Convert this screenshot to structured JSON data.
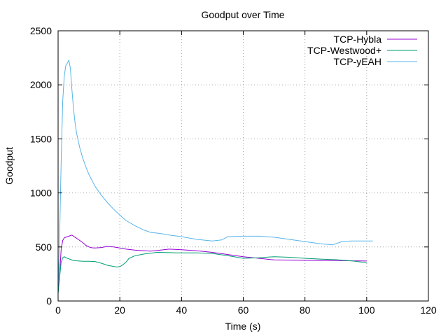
{
  "chart_data": {
    "type": "line",
    "title": "Goodput over Time",
    "xlabel": "Time (s)",
    "ylabel": "Goodput",
    "xlim": [
      0,
      120
    ],
    "ylim": [
      0,
      2500
    ],
    "xticks": [
      0,
      20,
      40,
      60,
      80,
      100,
      120
    ],
    "yticks": [
      0,
      500,
      1000,
      1500,
      2000,
      2500
    ],
    "grid": true,
    "legend_position": "top-right",
    "series": [
      {
        "name": "TCP-Hybla",
        "color": "#9400d3",
        "x": [
          0,
          0.5,
          1,
          1.5,
          2,
          2.5,
          3,
          3.5,
          4,
          4.5,
          5,
          6,
          7,
          8,
          9,
          10,
          11,
          12,
          14,
          16,
          18,
          20,
          22,
          25,
          28,
          30,
          33,
          36,
          40,
          45,
          50,
          55,
          60,
          65,
          70,
          75,
          80,
          85,
          90,
          95,
          100
        ],
        "y": [
          80,
          250,
          480,
          560,
          585,
          590,
          595,
          600,
          605,
          610,
          600,
          580,
          560,
          540,
          515,
          500,
          492,
          490,
          495,
          505,
          500,
          490,
          480,
          470,
          465,
          462,
          470,
          480,
          475,
          465,
          450,
          430,
          410,
          395,
          380,
          378,
          376,
          375,
          375,
          372,
          370
        ]
      },
      {
        "name": "TCP-Westwood+",
        "color": "#009e73",
        "x": [
          0,
          0.5,
          1,
          1.5,
          2,
          2.5,
          3,
          3.5,
          4,
          5,
          6,
          8,
          10,
          12,
          14,
          16,
          18,
          19,
          20,
          21,
          22,
          23,
          25,
          28,
          30,
          32,
          35,
          40,
          45,
          50,
          55,
          60,
          65,
          70,
          75,
          80,
          85,
          90,
          95,
          100
        ],
        "y": [
          70,
          220,
          360,
          400,
          410,
          400,
          395,
          390,
          385,
          375,
          372,
          368,
          368,
          365,
          350,
          330,
          320,
          315,
          318,
          335,
          360,
          395,
          420,
          435,
          442,
          450,
          448,
          445,
          445,
          440,
          420,
          395,
          400,
          410,
          405,
          395,
          388,
          382,
          372,
          355
        ]
      },
      {
        "name": "TCP-yEAH",
        "color": "#56b4e9",
        "x": [
          0,
          0.5,
          1,
          1.5,
          2,
          2.5,
          3,
          3.5,
          4,
          4.5,
          5,
          5.5,
          6,
          7,
          8,
          9,
          10,
          12,
          14,
          16,
          18,
          20,
          22,
          25,
          28,
          30,
          33,
          36,
          40,
          45,
          50,
          53,
          55,
          60,
          65,
          70,
          75,
          80,
          85,
          89,
          92,
          95,
          100,
          102
        ],
        "y": [
          100,
          600,
          1300,
          1850,
          2080,
          2180,
          2200,
          2230,
          2150,
          1950,
          1780,
          1650,
          1550,
          1420,
          1320,
          1240,
          1170,
          1060,
          980,
          910,
          850,
          795,
          745,
          695,
          655,
          635,
          625,
          610,
          595,
          570,
          555,
          565,
          595,
          600,
          600,
          590,
          570,
          550,
          530,
          520,
          550,
          555,
          555,
          555
        ]
      }
    ]
  }
}
